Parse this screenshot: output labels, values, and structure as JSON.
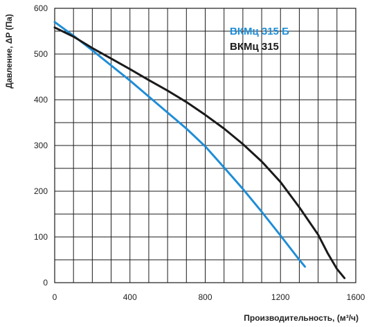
{
  "chart_data": {
    "type": "line",
    "title": "",
    "xlabel": "Производительность, (м³/ч)",
    "ylabel": "Давление, ΔP (Па)",
    "xlim": [
      0,
      1600
    ],
    "ylim": [
      0,
      600
    ],
    "x_ticks": [
      0,
      400,
      800,
      1200,
      1600
    ],
    "y_ticks": [
      0,
      100,
      200,
      300,
      400,
      500,
      600
    ],
    "x_grid_step": 100,
    "y_grid_step": 50,
    "grid": true,
    "legend_position": "top-right",
    "series": [
      {
        "name": "ВКМц 315 Б",
        "color": "#1f8dd6",
        "x": [
          0,
          100,
          200,
          300,
          400,
          500,
          600,
          700,
          800,
          900,
          1000,
          1100,
          1200,
          1300,
          1330
        ],
        "y": [
          570,
          540,
          508,
          475,
          442,
          407,
          372,
          337,
          298,
          252,
          205,
          155,
          103,
          50,
          35
        ]
      },
      {
        "name": "ВКМц 315",
        "color": "#1a1a1a",
        "x": [
          0,
          100,
          200,
          300,
          400,
          500,
          600,
          700,
          800,
          900,
          1000,
          1100,
          1200,
          1300,
          1400,
          1450,
          1500,
          1540
        ],
        "y": [
          558,
          538,
          513,
          490,
          467,
          443,
          420,
          395,
          367,
          337,
          303,
          265,
          220,
          165,
          105,
          65,
          30,
          10
        ]
      }
    ]
  }
}
